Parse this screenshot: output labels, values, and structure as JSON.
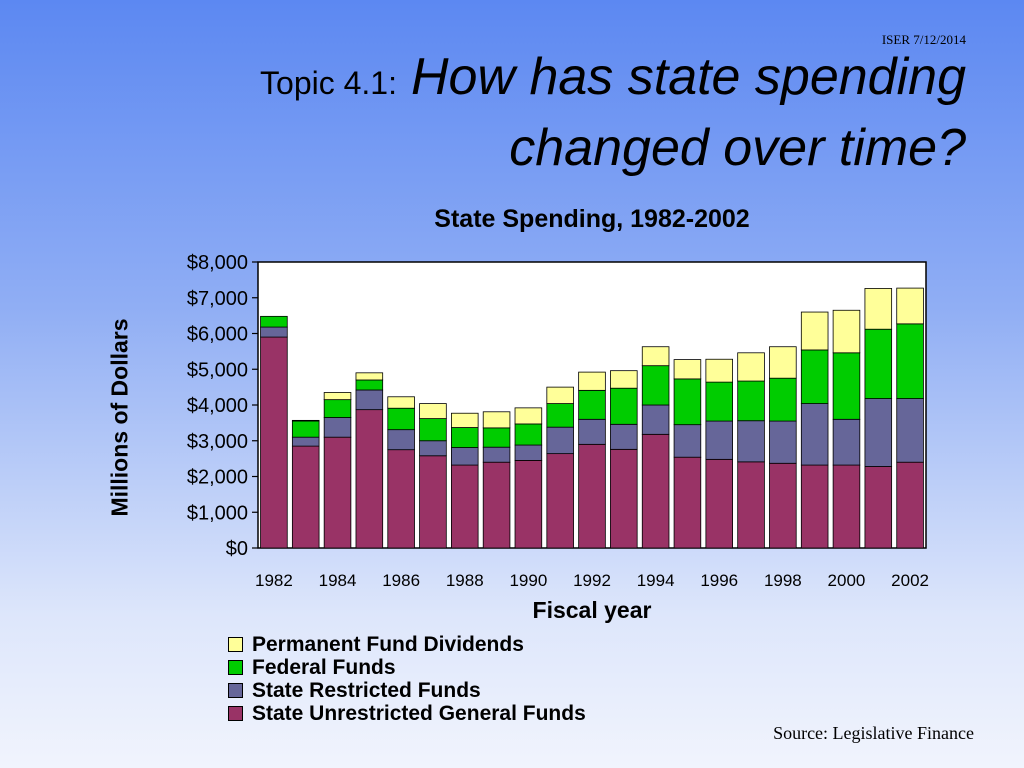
{
  "header": {
    "iser": "ISER 7/12/2014",
    "prefix": "Topic 4.1:",
    "question_line1": "How has state spending",
    "question_line2": "changed over time?"
  },
  "footer": {
    "source": "Source: Legislative Finance"
  },
  "chart_data": {
    "type": "bar",
    "stacked": true,
    "title": "State Spending, 1982-2002",
    "xlabel": "Fiscal year",
    "ylabel": "Millions of Dollars",
    "ylim": [
      0,
      8000
    ],
    "y_ticks": [
      0,
      1000,
      2000,
      3000,
      4000,
      5000,
      6000,
      7000,
      8000
    ],
    "y_tick_labels": [
      "$0",
      "$1,000",
      "$2,000",
      "$3,000",
      "$4,000",
      "$5,000",
      "$6,000",
      "$7,000",
      "$8,000"
    ],
    "categories": [
      "1982",
      "1983",
      "1984",
      "1985",
      "1986",
      "1987",
      "1988",
      "1989",
      "1990",
      "1991",
      "1992",
      "1993",
      "1994",
      "1995",
      "1996",
      "1997",
      "1998",
      "1999",
      "2000",
      "2001",
      "2002"
    ],
    "x_tick_labels": [
      "1982",
      "1984",
      "1986",
      "1988",
      "1990",
      "1992",
      "1994",
      "1996",
      "1998",
      "2000",
      "2002"
    ],
    "grid": false,
    "legend_position": "bottom",
    "series": [
      {
        "name": "State Unrestricted General Funds",
        "color": "#993366",
        "values": [
          5900,
          2850,
          3100,
          3870,
          2750,
          2580,
          2320,
          2400,
          2450,
          2640,
          2900,
          2760,
          3180,
          2540,
          2480,
          2410,
          2370,
          2320,
          2320,
          2280,
          2400
        ]
      },
      {
        "name": "State Restricted Funds",
        "color": "#666699",
        "values": [
          280,
          250,
          550,
          550,
          560,
          420,
          490,
          420,
          430,
          740,
          700,
          700,
          820,
          910,
          1070,
          1150,
          1180,
          1720,
          1280,
          1900,
          1780
        ]
      },
      {
        "name": "Federal Funds",
        "color": "#00cc00",
        "values": [
          300,
          450,
          500,
          280,
          600,
          620,
          560,
          540,
          590,
          660,
          810,
          1010,
          1100,
          1280,
          1090,
          1110,
          1200,
          1500,
          1860,
          1940,
          2090
        ]
      },
      {
        "name": "Permanent Fund Dividends",
        "color": "#ffff99",
        "values": [
          0,
          20,
          200,
          200,
          320,
          420,
          400,
          450,
          450,
          460,
          510,
          490,
          530,
          540,
          640,
          790,
          880,
          1060,
          1190,
          1140,
          1000
        ]
      }
    ]
  }
}
